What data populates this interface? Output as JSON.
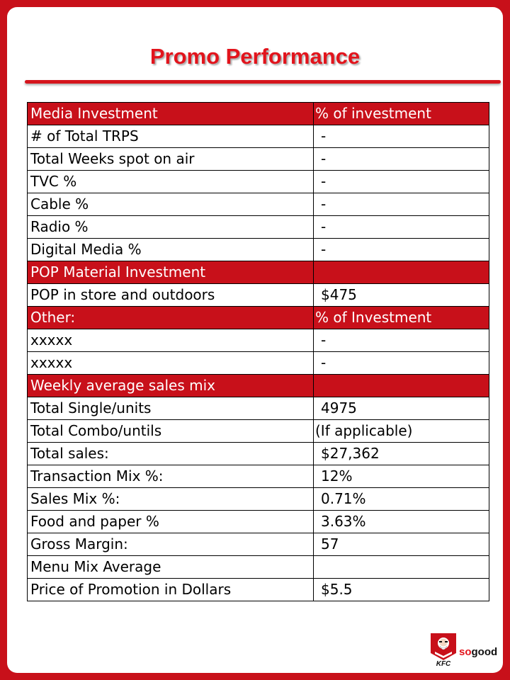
{
  "title": "Promo Performance",
  "rows": [
    {
      "type": "header",
      "label": "Media Investment",
      "value": "% of investment"
    },
    {
      "type": "row",
      "label": "# of Total TRPS",
      "value": "-"
    },
    {
      "type": "row",
      "label": "Total Weeks spot on air",
      "value": "-"
    },
    {
      "type": "row",
      "label": "TVC  %",
      "value": "-"
    },
    {
      "type": "row",
      "label": "Cable %",
      "value": "-"
    },
    {
      "type": "row",
      "label": "Radio %",
      "value": "-"
    },
    {
      "type": "row",
      "label": "Digital Media %",
      "value": "-"
    },
    {
      "type": "header",
      "label": "POP Material Investment",
      "value": ""
    },
    {
      "type": "row",
      "label": "POP in store and outdoors",
      "value": "$475"
    },
    {
      "type": "header",
      "label": "Other:",
      "value": "% of Investment"
    },
    {
      "type": "row",
      "label": "xxxxx",
      "value": "-"
    },
    {
      "type": "row",
      "label": "xxxxx",
      "value": "-"
    },
    {
      "type": "header",
      "label": "Weekly average sales mix",
      "value": ""
    },
    {
      "type": "row",
      "label": "Total Single/units",
      "value": "4975"
    },
    {
      "type": "row",
      "label": "Total Combo/untils",
      "value": "(If applicable)"
    },
    {
      "type": "row",
      "label": "Total sales:",
      "value": "$27,362"
    },
    {
      "type": "row",
      "label": "Transaction Mix %:",
      "value": "12%"
    },
    {
      "type": "row",
      "label": "Sales Mix %:",
      "value": "0.71%"
    },
    {
      "type": "row",
      "label": "Food and paper %",
      "value": "3.63%"
    },
    {
      "type": "row",
      "label": "Gross Margin:",
      "value": "57"
    },
    {
      "type": "row",
      "label": "Menu Mix Average",
      "value": ""
    },
    {
      "type": "row",
      "label": "Price of Promotion in Dollars",
      "value": "$5.5"
    }
  ],
  "logo": {
    "brand": "KFC",
    "tagline_prefix": "so",
    "tagline_suffix": "good",
    "icon": "colonel-logo-icon",
    "accent": "#e2141c"
  }
}
